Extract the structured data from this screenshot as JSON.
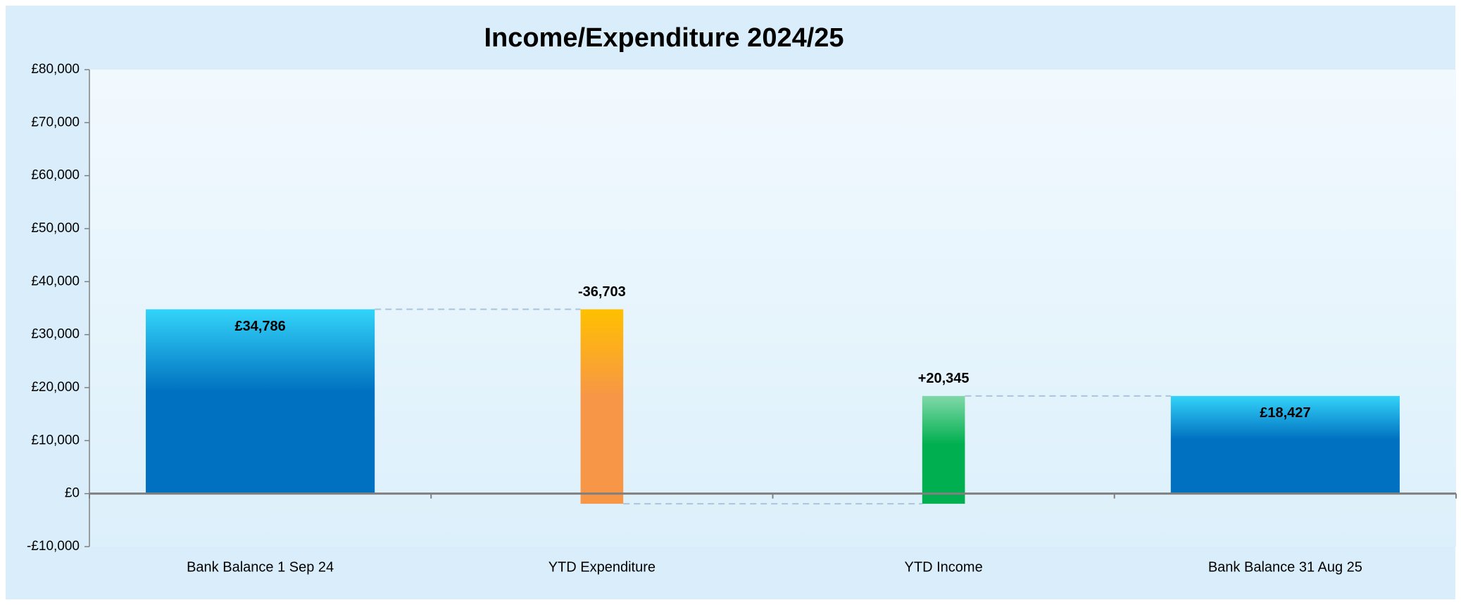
{
  "chart_data": {
    "type": "waterfall",
    "title": "Income/Expenditure 2024/25",
    "categories": [
      "Bank Balance 1 Sep 24",
      "YTD Expenditure",
      "YTD Income",
      "Bank Balance 31 Aug 25"
    ],
    "values": [
      34786,
      -36703,
      20345,
      18427
    ],
    "value_labels": [
      "£34,786",
      "-36,703",
      "+20,345",
      "£18,427"
    ],
    "measure": [
      "absolute",
      "relative",
      "relative",
      "total"
    ],
    "colors": [
      "#0070c0",
      "#f79646",
      "#00b050",
      "#0070c0"
    ],
    "ylim": [
      -10000,
      80000
    ],
    "yticks": [
      {
        "value": -10000,
        "label": "-£10,000"
      },
      {
        "value": 0,
        "label": "£0"
      },
      {
        "value": 10000,
        "label": "£10,000"
      },
      {
        "value": 20000,
        "label": "£20,000"
      },
      {
        "value": 30000,
        "label": "£30,000"
      },
      {
        "value": 40000,
        "label": "£40,000"
      },
      {
        "value": 50000,
        "label": "£50,000"
      },
      {
        "value": 60000,
        "label": "£60,000"
      },
      {
        "value": 70000,
        "label": "£70,000"
      },
      {
        "value": 80000,
        "label": "£80,000"
      }
    ]
  }
}
